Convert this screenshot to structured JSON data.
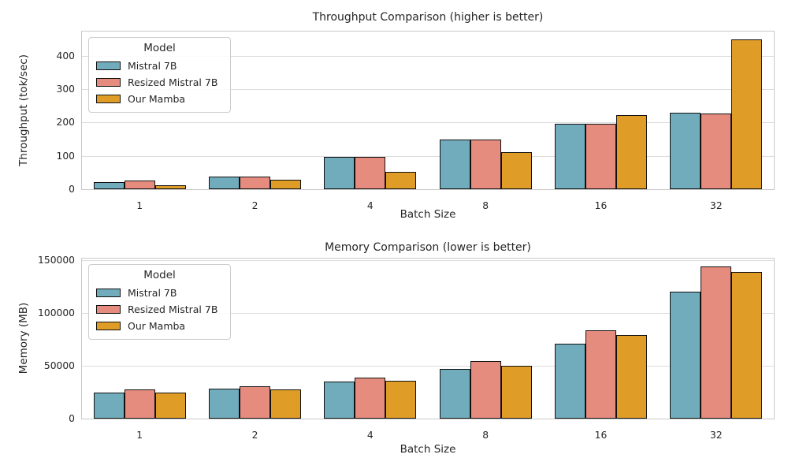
{
  "page": {
    "background": "#ffffff",
    "text_color": "#262626",
    "grid_color": "#dcdcdc",
    "spine_color": "#c9c9c9",
    "bar_edge_color": "#111111"
  },
  "chart_data": [
    {
      "type": "bar",
      "title": "Throughput Comparison (higher is better)",
      "xlabel": "Batch Size",
      "ylabel": "Throughput (tok/sec)",
      "categories": [
        "1",
        "2",
        "4",
        "8",
        "16",
        "32"
      ],
      "series": [
        {
          "name": "Mistral 7B",
          "color": "#71ACBD",
          "values": [
            22,
            38,
            96,
            150,
            197,
            229
          ]
        },
        {
          "name": "Resized Mistral 7B",
          "color": "#E68C7E",
          "values": [
            25,
            38,
            96,
            150,
            197,
            227
          ]
        },
        {
          "name": "Our Mamba",
          "color": "#DF9D27",
          "values": [
            13,
            28,
            52,
            111,
            223,
            450
          ]
        }
      ],
      "ylim": [
        0,
        472.5
      ],
      "ytick_values": [
        0,
        100,
        200,
        300,
        400
      ],
      "ytick_labels": [
        "0",
        "100",
        "200",
        "300",
        "400"
      ],
      "legend_title": "Model",
      "legend_position": "upper left",
      "grid": true
    },
    {
      "type": "bar",
      "title": "Memory Comparison (lower is better)",
      "xlabel": "Batch Size",
      "ylabel": "Memory (MB)",
      "categories": [
        "1",
        "2",
        "4",
        "8",
        "16",
        "32"
      ],
      "series": [
        {
          "name": "Mistral 7B",
          "color": "#71ACBD",
          "values": [
            25000,
            28500,
            35000,
            47000,
            71000,
            120500
          ]
        },
        {
          "name": "Resized Mistral 7B",
          "color": "#E68C7E",
          "values": [
            27500,
            31000,
            39000,
            54500,
            84000,
            144500
          ]
        },
        {
          "name": "Our Mamba",
          "color": "#DF9D27",
          "values": [
            25000,
            28000,
            36000,
            50000,
            79500,
            139000
          ]
        }
      ],
      "ylim": [
        0,
        151725
      ],
      "ytick_values": [
        0,
        50000,
        100000,
        150000
      ],
      "ytick_labels": [
        "0",
        "50000",
        "100000",
        "150000"
      ],
      "legend_title": "Model",
      "legend_position": "upper left",
      "grid": true
    }
  ]
}
